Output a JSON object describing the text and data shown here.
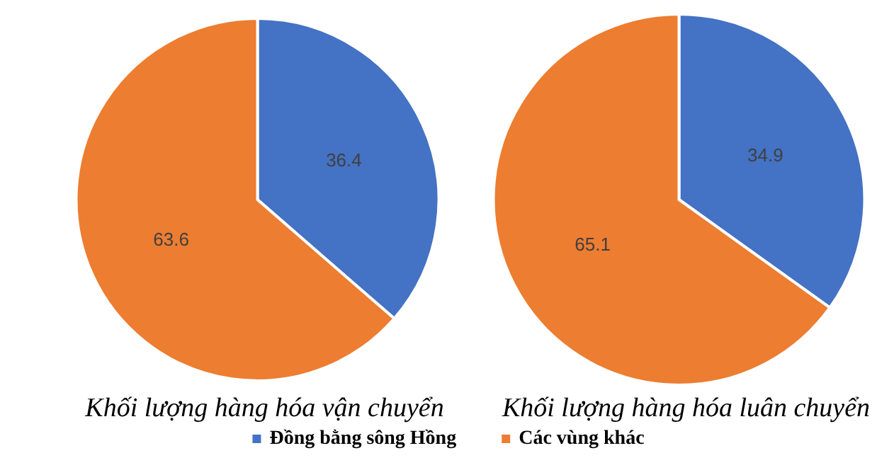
{
  "chart_data": [
    {
      "type": "pie",
      "title": "Khối lượng hàng hóa vận chuyển",
      "categories": [
        "Đồng bằng sông Hồng",
        "Các vùng khác"
      ],
      "values": [
        36.4,
        63.6
      ],
      "colors": [
        "#4472c4",
        "#ed7d31"
      ],
      "data_labels": true,
      "legend": "bottom"
    },
    {
      "type": "pie",
      "title": "Khối lượng hàng hóa luân chuyển",
      "categories": [
        null,
        null
      ],
      "values": [
        34.9,
        65.1
      ],
      "colors": [
        "#4472c4",
        "#ed7d31"
      ],
      "data_labels": true
    }
  ]
}
